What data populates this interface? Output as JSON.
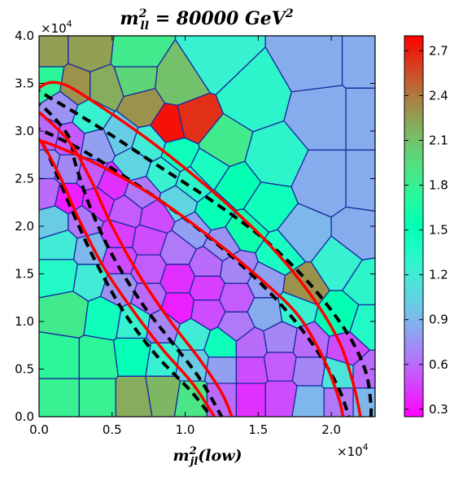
{
  "chart_data": {
    "type": "heatmap",
    "subtype": "voronoi",
    "title": "m²ₗₗ = 80000 GeV²",
    "title_parts": {
      "m": "m",
      "sup": "2",
      "sub": "ll",
      "eq": " = 80000 GeV",
      "unit_sup": "2"
    },
    "xlabel": "m²ⱼₗ(low)",
    "xlabel_parts": {
      "m": "m",
      "sup": "2",
      "sub": "jl",
      "rest": "(low)"
    },
    "ylabel": "",
    "x_multiplier": "×10⁴",
    "x_multiplier_parts": {
      "base": "×10",
      "exp": "4"
    },
    "y_multiplier": "×10⁴",
    "y_multiplier_parts": {
      "base": "×10",
      "exp": "4"
    },
    "xlim": [
      0,
      23000
    ],
    "ylim": [
      0,
      40000
    ],
    "x_ticks": [
      {
        "value": 0,
        "label": "0.0"
      },
      {
        "value": 5000,
        "label": "0.5"
      },
      {
        "value": 10000,
        "label": "1.0"
      },
      {
        "value": 15000,
        "label": "1.5"
      },
      {
        "value": 20000,
        "label": "2.0"
      }
    ],
    "y_ticks": [
      {
        "value": 0,
        "label": "0.0"
      },
      {
        "value": 5000,
        "label": "0.5"
      },
      {
        "value": 10000,
        "label": "1.0"
      },
      {
        "value": 15000,
        "label": "1.5"
      },
      {
        "value": 20000,
        "label": "2.0"
      },
      {
        "value": 25000,
        "label": "2.5"
      },
      {
        "value": 30000,
        "label": "3.0"
      },
      {
        "value": 35000,
        "label": "3.5"
      },
      {
        "value": 40000,
        "label": "4.0"
      }
    ],
    "colorbar": {
      "colormap": "rainbow",
      "range": [
        0.25,
        2.8
      ],
      "ticks": [
        {
          "value": 0.3,
          "label": "0.3"
        },
        {
          "value": 0.6,
          "label": "0.6"
        },
        {
          "value": 0.9,
          "label": "0.9"
        },
        {
          "value": 1.2,
          "label": "1.2"
        },
        {
          "value": 1.5,
          "label": "1.5"
        },
        {
          "value": 1.8,
          "label": "1.8"
        },
        {
          "value": 2.1,
          "label": "2.1"
        },
        {
          "value": 2.4,
          "label": "2.4"
        },
        {
          "value": 2.7,
          "label": "2.7"
        }
      ]
    },
    "cell_edge_color": "#1a2aa0",
    "cells": [
      {
        "x": 500,
        "y": 38500,
        "v": 2.25
      },
      {
        "x": 3500,
        "y": 38500,
        "v": 2.25
      },
      {
        "x": 6500,
        "y": 38000,
        "v": 1.85
      },
      {
        "x": 12000,
        "y": 37500,
        "v": 1.25
      },
      {
        "x": 19000,
        "y": 37500,
        "v": 0.85
      },
      {
        "x": 22500,
        "y": 37500,
        "v": 0.85
      },
      {
        "x": 500,
        "y": 35000,
        "v": 1.75
      },
      {
        "x": 2500,
        "y": 34500,
        "v": 2.3
      },
      {
        "x": 4500,
        "y": 34500,
        "v": 2.2
      },
      {
        "x": 6500,
        "y": 35500,
        "v": 2.0
      },
      {
        "x": 9500,
        "y": 35000,
        "v": 2.1
      },
      {
        "x": 14500,
        "y": 33500,
        "v": 1.3
      },
      {
        "x": 19500,
        "y": 31500,
        "v": 0.85
      },
      {
        "x": 22500,
        "y": 31500,
        "v": 0.85
      },
      {
        "x": 7000,
        "y": 32500,
        "v": 2.3
      },
      {
        "x": 9000,
        "y": 30500,
        "v": 2.75
      },
      {
        "x": 10500,
        "y": 31000,
        "v": 2.65
      },
      {
        "x": 12500,
        "y": 28500,
        "v": 1.85
      },
      {
        "x": 16000,
        "y": 27000,
        "v": 1.3
      },
      {
        "x": 19500,
        "y": 24500,
        "v": 0.85
      },
      {
        "x": 22500,
        "y": 24500,
        "v": 0.85
      },
      {
        "x": 1500,
        "y": 32500,
        "v": 0.75
      },
      {
        "x": 3500,
        "y": 31500,
        "v": 1.25
      },
      {
        "x": 5500,
        "y": 29500,
        "v": 1.0
      },
      {
        "x": 7500,
        "y": 28500,
        "v": 1.2
      },
      {
        "x": 9500,
        "y": 27500,
        "v": 1.45
      },
      {
        "x": 11500,
        "y": 26000,
        "v": 1.4
      },
      {
        "x": 500,
        "y": 29500,
        "v": 0.6
      },
      {
        "x": 2000,
        "y": 29000,
        "v": 0.55
      },
      {
        "x": 4000,
        "y": 28500,
        "v": 0.8
      },
      {
        "x": 6500,
        "y": 26500,
        "v": 1.05
      },
      {
        "x": 8500,
        "y": 25500,
        "v": 1.25
      },
      {
        "x": 10500,
        "y": 24500,
        "v": 1.3
      },
      {
        "x": 13500,
        "y": 24000,
        "v": 1.55
      },
      {
        "x": 15500,
        "y": 22000,
        "v": 1.45
      },
      {
        "x": 18000,
        "y": 19000,
        "v": 0.9
      },
      {
        "x": 22000,
        "y": 19000,
        "v": 0.85
      },
      {
        "x": 500,
        "y": 26500,
        "v": 0.75
      },
      {
        "x": 2000,
        "y": 26000,
        "v": 0.7
      },
      {
        "x": 3500,
        "y": 25500,
        "v": 0.55
      },
      {
        "x": 5000,
        "y": 24500,
        "v": 0.4
      },
      {
        "x": 7000,
        "y": 23500,
        "v": 0.65
      },
      {
        "x": 9500,
        "y": 22500,
        "v": 1.05
      },
      {
        "x": 12000,
        "y": 21500,
        "v": 1.5
      },
      {
        "x": 14000,
        "y": 19500,
        "v": 1.6
      },
      {
        "x": 16500,
        "y": 17000,
        "v": 1.4
      },
      {
        "x": 20500,
        "y": 16000,
        "v": 1.25
      },
      {
        "x": 22500,
        "y": 14000,
        "v": 1.3
      },
      {
        "x": 500,
        "y": 23500,
        "v": 0.6
      },
      {
        "x": 2000,
        "y": 23000,
        "v": 0.35
      },
      {
        "x": 4000,
        "y": 22500,
        "v": 0.4
      },
      {
        "x": 6000,
        "y": 21500,
        "v": 0.55
      },
      {
        "x": 8000,
        "y": 21000,
        "v": 0.5
      },
      {
        "x": 10500,
        "y": 19500,
        "v": 0.8
      },
      {
        "x": 12500,
        "y": 18000,
        "v": 0.75
      },
      {
        "x": 1000,
        "y": 20500,
        "v": 1.0
      },
      {
        "x": 3000,
        "y": 20500,
        "v": 0.65
      },
      {
        "x": 5500,
        "y": 19000,
        "v": 0.45
      },
      {
        "x": 7500,
        "y": 18500,
        "v": 0.5
      },
      {
        "x": 9500,
        "y": 17500,
        "v": 0.65
      },
      {
        "x": 11500,
        "y": 16000,
        "v": 0.6
      },
      {
        "x": 13500,
        "y": 15500,
        "v": 0.7
      },
      {
        "x": 15500,
        "y": 14000,
        "v": 0.8
      },
      {
        "x": 18000,
        "y": 13500,
        "v": 2.3
      },
      {
        "x": 1500,
        "y": 18000,
        "v": 1.2
      },
      {
        "x": 3500,
        "y": 17500,
        "v": 0.9
      },
      {
        "x": 5500,
        "y": 16500,
        "v": 0.5
      },
      {
        "x": 7500,
        "y": 15500,
        "v": 0.55
      },
      {
        "x": 9500,
        "y": 14500,
        "v": 0.4
      },
      {
        "x": 11500,
        "y": 13500,
        "v": 0.45
      },
      {
        "x": 13500,
        "y": 12500,
        "v": 0.55
      },
      {
        "x": 15500,
        "y": 11000,
        "v": 0.85
      },
      {
        "x": 17500,
        "y": 11500,
        "v": 1.25
      },
      {
        "x": 20500,
        "y": 10500,
        "v": 1.55
      },
      {
        "x": 22500,
        "y": 9500,
        "v": 1.35
      },
      {
        "x": 1500,
        "y": 15000,
        "v": 1.35
      },
      {
        "x": 3500,
        "y": 14500,
        "v": 1.2
      },
      {
        "x": 5500,
        "y": 13500,
        "v": 0.75
      },
      {
        "x": 7500,
        "y": 12500,
        "v": 0.6
      },
      {
        "x": 9500,
        "y": 11500,
        "v": 0.35
      },
      {
        "x": 11500,
        "y": 11000,
        "v": 0.5
      },
      {
        "x": 13500,
        "y": 9500,
        "v": 0.65
      },
      {
        "x": 2000,
        "y": 11000,
        "v": 1.85
      },
      {
        "x": 4500,
        "y": 10500,
        "v": 1.45
      },
      {
        "x": 6500,
        "y": 10000,
        "v": 1.25
      },
      {
        "x": 8500,
        "y": 9500,
        "v": 0.7
      },
      {
        "x": 10500,
        "y": 8500,
        "v": 1.2
      },
      {
        "x": 12500,
        "y": 7500,
        "v": 1.45
      },
      {
        "x": 14500,
        "y": 7500,
        "v": 0.6
      },
      {
        "x": 16500,
        "y": 8000,
        "v": 0.7
      },
      {
        "x": 18500,
        "y": 7500,
        "v": 0.6
      },
      {
        "x": 21000,
        "y": 7000,
        "v": 0.5
      },
      {
        "x": 1500,
        "y": 6000,
        "v": 1.75
      },
      {
        "x": 4000,
        "y": 6000,
        "v": 1.75
      },
      {
        "x": 6500,
        "y": 6500,
        "v": 1.5
      },
      {
        "x": 8500,
        "y": 6000,
        "v": 1.25
      },
      {
        "x": 10500,
        "y": 5500,
        "v": 1.0
      },
      {
        "x": 12500,
        "y": 5000,
        "v": 0.8
      },
      {
        "x": 14500,
        "y": 5000,
        "v": 0.5
      },
      {
        "x": 16500,
        "y": 5500,
        "v": 0.55
      },
      {
        "x": 18500,
        "y": 5000,
        "v": 0.7
      },
      {
        "x": 20500,
        "y": 4500,
        "v": 1.15
      },
      {
        "x": 22500,
        "y": 4500,
        "v": 0.6
      },
      {
        "x": 1500,
        "y": 2000,
        "v": 1.8
      },
      {
        "x": 4000,
        "y": 2000,
        "v": 1.8
      },
      {
        "x": 6500,
        "y": 2000,
        "v": 2.2
      },
      {
        "x": 8500,
        "y": 2500,
        "v": 2.15
      },
      {
        "x": 10500,
        "y": 2000,
        "v": 1.9
      },
      {
        "x": 12500,
        "y": 2000,
        "v": 0.6
      },
      {
        "x": 14500,
        "y": 2000,
        "v": 0.4
      },
      {
        "x": 16500,
        "y": 2000,
        "v": 0.5
      },
      {
        "x": 18500,
        "y": 1500,
        "v": 0.9
      },
      {
        "x": 20500,
        "y": 1500,
        "v": 0.65
      },
      {
        "x": 22500,
        "y": 1500,
        "v": 0.9
      }
    ],
    "contours": [
      {
        "style": "dashed",
        "color": "#000000",
        "points": [
          [
            -500,
            34500
          ],
          [
            300,
            33900
          ],
          [
            4000,
            30500
          ],
          [
            8000,
            26500
          ],
          [
            12000,
            22500
          ],
          [
            15500,
            18500
          ],
          [
            18500,
            14000
          ],
          [
            21000,
            9000
          ],
          [
            22300,
            5000
          ],
          [
            22700,
            1500
          ],
          [
            22700,
            -500
          ]
        ]
      },
      {
        "style": "dashed",
        "color": "#000000",
        "points": [
          [
            -500,
            30500
          ],
          [
            300,
            30000
          ],
          [
            3500,
            27500
          ],
          [
            8000,
            23000
          ],
          [
            11500,
            19000
          ],
          [
            14500,
            15000
          ],
          [
            17000,
            11000
          ],
          [
            19000,
            7000
          ],
          [
            20500,
            3000
          ],
          [
            21200,
            0
          ]
        ]
      },
      {
        "style": "dashed",
        "color": "#000000",
        "points": [
          [
            -500,
            32800
          ],
          [
            300,
            32500
          ],
          [
            2000,
            29500
          ],
          [
            2500,
            26500
          ],
          [
            3500,
            22000
          ],
          [
            5000,
            17000
          ],
          [
            7000,
            12000
          ],
          [
            9000,
            8000
          ],
          [
            11000,
            4000
          ],
          [
            12500,
            0
          ]
        ]
      },
      {
        "style": "dashed",
        "color": "#000000",
        "points": [
          [
            -500,
            29500
          ],
          [
            300,
            28500
          ],
          [
            1200,
            25500
          ],
          [
            2300,
            21500
          ],
          [
            3800,
            16500
          ],
          [
            5800,
            11000
          ],
          [
            8000,
            6500
          ],
          [
            10500,
            2500
          ],
          [
            12000,
            -500
          ]
        ]
      },
      {
        "style": "solid",
        "color": "#ff0000",
        "points": [
          [
            -500,
            32000
          ],
          [
            0,
            34500
          ],
          [
            1500,
            35000
          ],
          [
            4000,
            32800
          ],
          [
            8000,
            28500
          ],
          [
            12000,
            23500
          ],
          [
            15500,
            18500
          ],
          [
            18500,
            13000
          ],
          [
            20500,
            8000
          ],
          [
            21500,
            3500
          ],
          [
            22000,
            0
          ]
        ]
      },
      {
        "style": "solid",
        "color": "#ff0000",
        "points": [
          [
            0,
            29000
          ],
          [
            1000,
            28500
          ],
          [
            4000,
            26500
          ],
          [
            8000,
            23000
          ],
          [
            12000,
            18500
          ],
          [
            15500,
            14000
          ],
          [
            17800,
            10500
          ],
          [
            19500,
            6000
          ],
          [
            20500,
            2000
          ],
          [
            20800,
            0
          ]
        ]
      },
      {
        "style": "solid",
        "color": "#ff0000",
        "points": [
          [
            -500,
            30000
          ],
          [
            300,
            28500
          ],
          [
            1500,
            25000
          ],
          [
            2800,
            20500
          ],
          [
            4500,
            15500
          ],
          [
            6500,
            11000
          ],
          [
            8500,
            7000
          ],
          [
            10500,
            3500
          ],
          [
            12000,
            0
          ]
        ]
      },
      {
        "style": "solid",
        "color": "#ff0000",
        "points": [
          [
            0,
            32000
          ],
          [
            2000,
            29000
          ],
          [
            3500,
            25000
          ],
          [
            5000,
            20000
          ],
          [
            7000,
            14500
          ],
          [
            9000,
            10000
          ],
          [
            11000,
            6000
          ],
          [
            12500,
            2500
          ],
          [
            13200,
            0
          ]
        ]
      }
    ]
  }
}
